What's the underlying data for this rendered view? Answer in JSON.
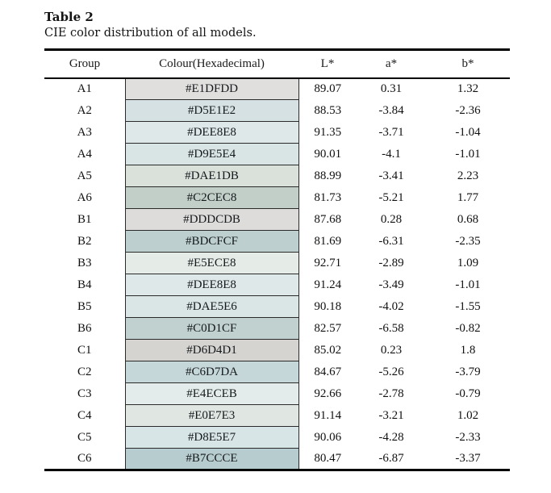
{
  "title": "Table 2",
  "subtitle": "CIE color distribution of all models.",
  "table": {
    "headers": {
      "group": "Group",
      "colour": "Colour(Hexadecimal)",
      "l": "L*",
      "a": "a*",
      "b": "b*"
    },
    "rows": [
      {
        "group": "A1",
        "hex": "#E1DFDD",
        "l": "89.07",
        "a": "0.31",
        "b": "1.32"
      },
      {
        "group": "A2",
        "hex": "#D5E1E2",
        "l": "88.53",
        "a": "-3.84",
        "b": "-2.36"
      },
      {
        "group": "A3",
        "hex": "#DEE8E8",
        "l": "91.35",
        "a": "-3.71",
        "b": "-1.04"
      },
      {
        "group": "A4",
        "hex": "#D9E5E4",
        "l": "90.01",
        "a": "-4.1",
        "b": "-1.01"
      },
      {
        "group": "A5",
        "hex": "#DAE1DB",
        "l": "88.99",
        "a": "-3.41",
        "b": "2.23"
      },
      {
        "group": "A6",
        "hex": "#C2CEC8",
        "l": "81.73",
        "a": "-5.21",
        "b": "1.77"
      },
      {
        "group": "B1",
        "hex": "#DDDCDB",
        "l": "87.68",
        "a": "0.28",
        "b": "0.68"
      },
      {
        "group": "B2",
        "hex": "#BDCFCF",
        "l": "81.69",
        "a": "-6.31",
        "b": "-2.35"
      },
      {
        "group": "B3",
        "hex": "#E5ECE8",
        "l": "92.71",
        "a": "-2.89",
        "b": "1.09"
      },
      {
        "group": "B4",
        "hex": "#DEE8E8",
        "l": "91.24",
        "a": "-3.49",
        "b": "-1.01"
      },
      {
        "group": "B5",
        "hex": "#DAE5E6",
        "l": "90.18",
        "a": "-4.02",
        "b": "-1.55"
      },
      {
        "group": "B6",
        "hex": "#C0D1CF",
        "l": "82.57",
        "a": "-6.58",
        "b": "-0.82"
      },
      {
        "group": "C1",
        "hex": "#D6D4D1",
        "l": "85.02",
        "a": "0.23",
        "b": "1.8"
      },
      {
        "group": "C2",
        "hex": "#C6D7DA",
        "l": "84.67",
        "a": "-5.26",
        "b": "-3.79"
      },
      {
        "group": "C3",
        "hex": "#E4ECEB",
        "l": "92.66",
        "a": "-2.78",
        "b": "-0.79"
      },
      {
        "group": "C4",
        "hex": "#E0E7E3",
        "l": "91.14",
        "a": "-3.21",
        "b": "1.02"
      },
      {
        "group": "C5",
        "hex": "#D8E5E7",
        "l": "90.06",
        "a": "-4.28",
        "b": "-2.33"
      },
      {
        "group": "C6",
        "hex": "#B7CCCE",
        "l": "80.47",
        "a": "-6.87",
        "b": "-3.37"
      }
    ]
  }
}
